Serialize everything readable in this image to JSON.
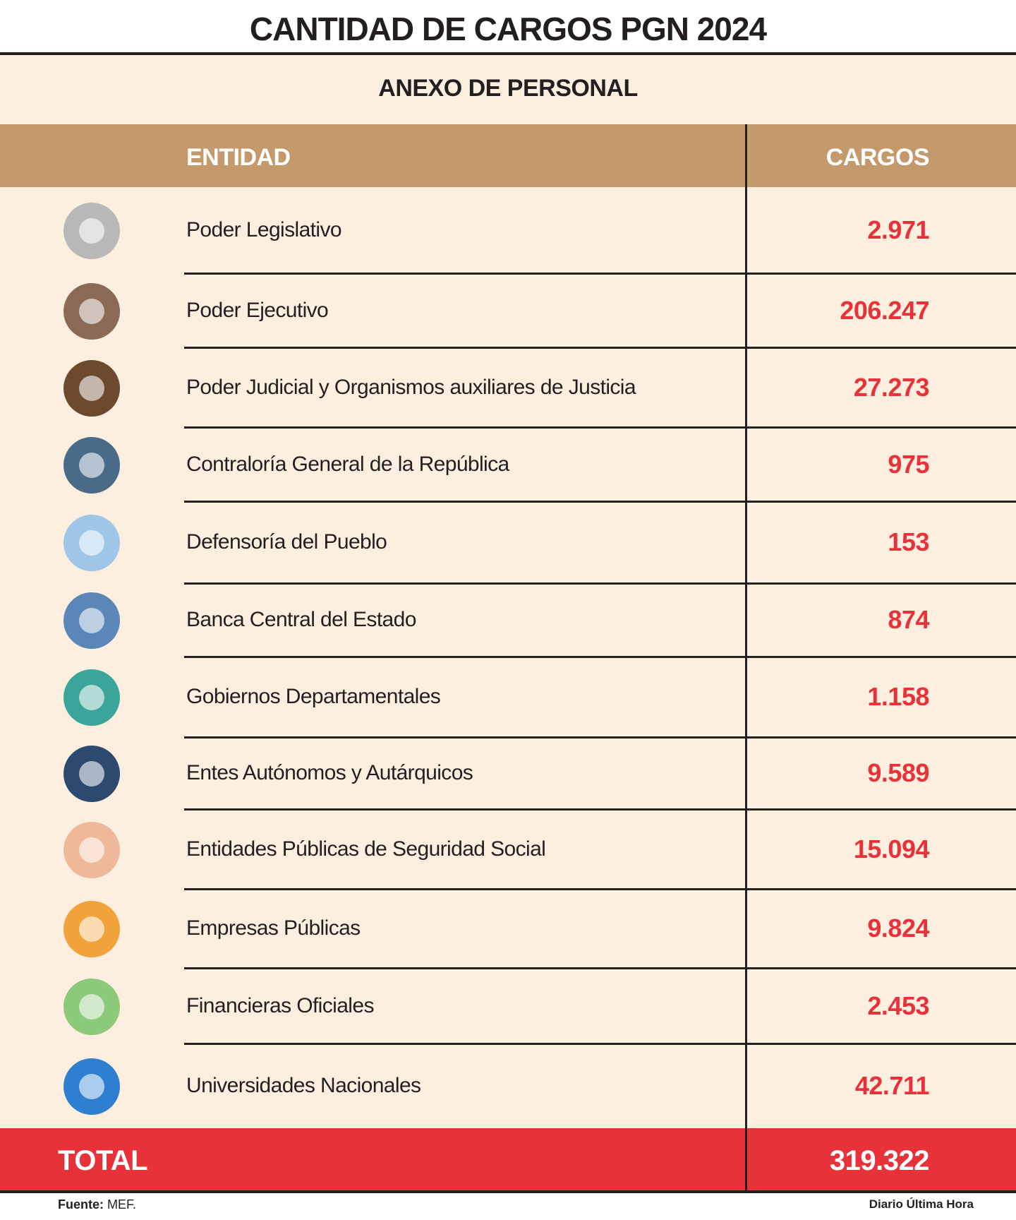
{
  "header": {
    "title": "CANTIDAD DE CARGOS PGN 2024",
    "subtitle": "ANEXO DE PERSONAL"
  },
  "table": {
    "columns": [
      "ENTIDAD",
      "CARGOS"
    ],
    "rows": [
      [
        "Poder Legislativo",
        "2.971"
      ],
      [
        "Poder Ejecutivo",
        "206.247"
      ],
      [
        "Poder Judicial y Organismos auxiliares de Justicia",
        "27.273"
      ],
      [
        "Contraloría General de la República",
        "975"
      ],
      [
        "Defensoría del Pueblo",
        "153"
      ],
      [
        "Banca Central del Estado",
        "874"
      ],
      [
        "Gobiernos Departamentales",
        "1.158"
      ],
      [
        "Entes Autónomos y Autárquicos",
        "9.589"
      ],
      [
        "Entidades Públicas de Seguridad Social",
        "15.094"
      ],
      [
        "Empresas Públicas",
        "9.824"
      ],
      [
        "Financieras Oficiales",
        "2.453"
      ],
      [
        "Universidades Nacionales",
        "42.711"
      ]
    ],
    "total": [
      "TOTAL",
      "319.322"
    ]
  },
  "footer": {
    "source_label": "Fuente:",
    "source": "MEF.",
    "credit": "Diario Última Hora"
  }
}
